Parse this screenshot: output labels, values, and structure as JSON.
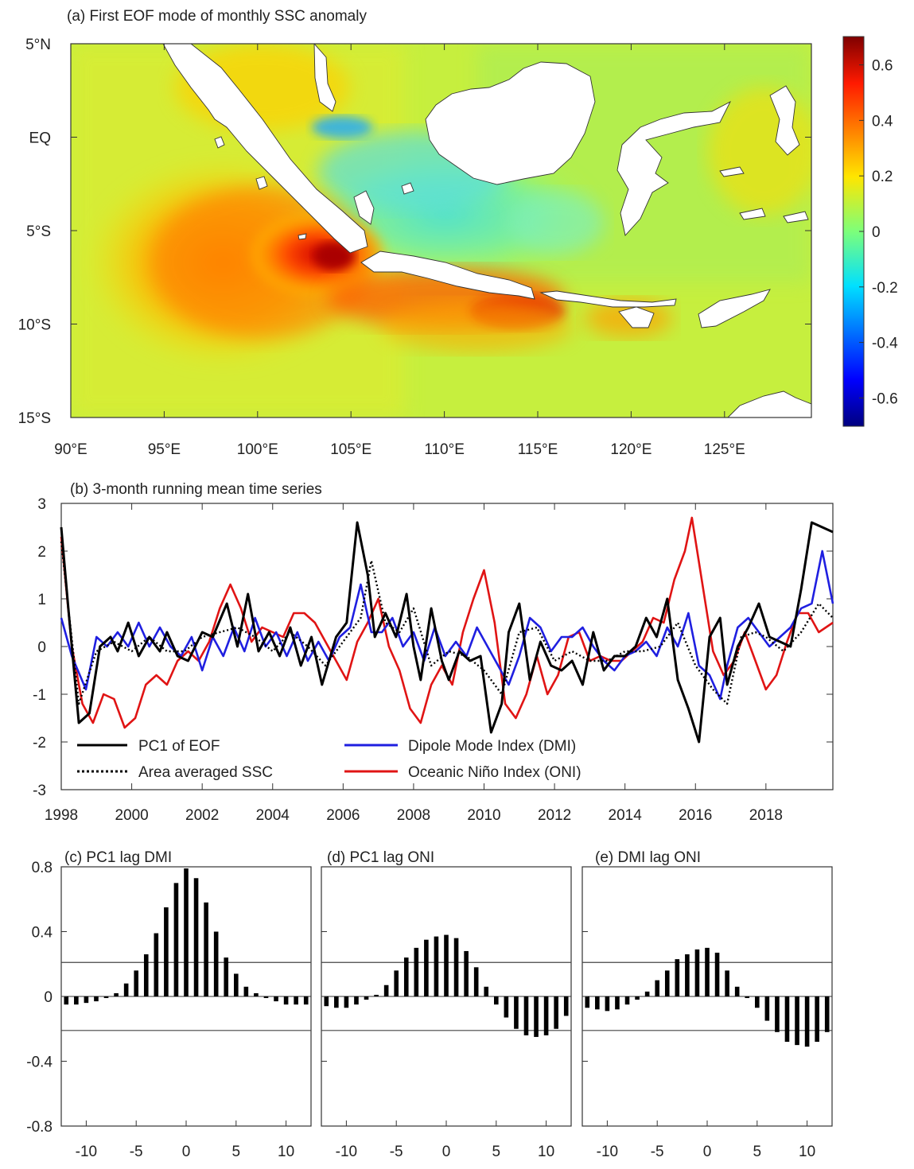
{
  "colors": {
    "pc1": "#000000",
    "dmi": "#1f1fe0",
    "oni": "#e01414",
    "bar": "#000000"
  },
  "panel_a": {
    "title": "(a) First EOF mode of monthly SSC anomaly",
    "lat_labels": [
      "5°N",
      "EQ",
      "5°S",
      "10°S",
      "15°S"
    ],
    "lon_labels": [
      "90°E",
      "95°E",
      "100°E",
      "105°E",
      "110°E",
      "115°E",
      "120°E",
      "125°E"
    ],
    "colorbar_labels": [
      "0.6",
      "0.4",
      "0.2",
      "0",
      "-0.2",
      "-0.4",
      "-0.6"
    ]
  },
  "chart_data": [
    {
      "type": "line",
      "title": "(b) 3-month running mean time series",
      "xlim": [
        1998,
        2019.9
      ],
      "ylim": [
        -3,
        3
      ],
      "ytick_labels": [
        "3",
        "2",
        "1",
        "0",
        "-1",
        "-2",
        "-3"
      ],
      "xtick_labels": [
        "1998",
        "2000",
        "2002",
        "2004",
        "2006",
        "2008",
        "2010",
        "2012",
        "2014",
        "2016",
        "2018"
      ],
      "legend": {
        "pc1": "PC1 of EOF",
        "ssc": "Area averaged SSC",
        "dmi": "Dipole Mode Index (DMI)",
        "oni": "Oceanic Niño Index (ONI)"
      },
      "series": [
        {
          "name": "PC1 of EOF",
          "style": "solid-black",
          "x": [
            1998.0,
            1998.2,
            1998.5,
            1998.8,
            1999.1,
            1999.4,
            1999.6,
            1999.9,
            2000.2,
            2000.5,
            2000.8,
            2001.0,
            2001.3,
            2001.6,
            2002.0,
            2002.3,
            2002.7,
            2003.0,
            2003.3,
            2003.6,
            2003.9,
            2004.2,
            2004.5,
            2004.8,
            2005.1,
            2005.4,
            2005.8,
            2006.1,
            2006.4,
            2006.7,
            2006.9,
            2007.2,
            2007.5,
            2007.8,
            2008.0,
            2008.2,
            2008.5,
            2008.8,
            2009.0,
            2009.3,
            2009.6,
            2009.9,
            2010.2,
            2010.5,
            2010.7,
            2011.0,
            2011.3,
            2011.6,
            2011.9,
            2012.2,
            2012.5,
            2012.8,
            2013.1,
            2013.4,
            2013.7,
            2014.0,
            2014.3,
            2014.6,
            2014.9,
            2015.2,
            2015.5,
            2015.8,
            2016.1,
            2016.4,
            2016.7,
            2016.9,
            2017.2,
            2017.5,
            2017.8,
            2018.1,
            2018.4,
            2018.7,
            2019.0,
            2019.3,
            2019.6,
            2019.9
          ],
          "values": [
            2.5,
            0.8,
            -1.6,
            -1.4,
            0.0,
            0.2,
            -0.1,
            0.5,
            -0.2,
            0.2,
            -0.1,
            0.3,
            -0.2,
            -0.3,
            0.3,
            0.2,
            0.9,
            0.0,
            1.1,
            -0.1,
            0.3,
            -0.2,
            0.4,
            -0.4,
            0.2,
            -0.8,
            0.2,
            0.5,
            2.6,
            1.5,
            0.2,
            0.7,
            0.2,
            1.1,
            0.0,
            -0.7,
            0.8,
            -0.3,
            -0.7,
            -0.1,
            -0.3,
            -0.2,
            -1.8,
            -1.2,
            0.3,
            0.9,
            -0.7,
            0.1,
            -0.4,
            -0.5,
            -0.3,
            -0.8,
            0.3,
            -0.5,
            -0.2,
            -0.2,
            0.0,
            0.6,
            0.2,
            1.0,
            -0.7,
            -1.3,
            -2.0,
            0.2,
            0.6,
            -0.8,
            0.0,
            0.4,
            0.9,
            0.2,
            0.1,
            0.0,
            1.2,
            2.6,
            2.5,
            2.4
          ]
        },
        {
          "name": "Area averaged SSC",
          "style": "dotted-black",
          "x": [
            1998.0,
            1998.5,
            1999.0,
            1999.5,
            2000.0,
            2000.5,
            2001.0,
            2001.5,
            2002.0,
            2002.5,
            2003.0,
            2003.5,
            2004.0,
            2004.5,
            2005.0,
            2005.5,
            2006.0,
            2006.5,
            2006.8,
            2007.2,
            2007.6,
            2008.0,
            2008.5,
            2009.0,
            2009.5,
            2010.0,
            2010.5,
            2011.0,
            2011.5,
            2012.0,
            2012.5,
            2013.0,
            2013.5,
            2014.0,
            2014.5,
            2015.0,
            2015.5,
            2016.0,
            2016.5,
            2016.9,
            2017.3,
            2017.7,
            2018.0,
            2018.5,
            2019.0,
            2019.5,
            2019.9
          ],
          "values": [
            2.2,
            -1.2,
            -0.1,
            0.1,
            -0.1,
            0.2,
            -0.1,
            -0.1,
            0.2,
            0.3,
            0.4,
            0.2,
            -0.1,
            0.3,
            0.0,
            -0.4,
            0.1,
            0.6,
            1.8,
            0.5,
            0.3,
            0.8,
            -0.4,
            -0.1,
            -0.2,
            -0.5,
            -1.0,
            0.3,
            0.4,
            -0.3,
            -0.1,
            -0.3,
            -0.3,
            -0.1,
            -0.1,
            0.0,
            0.5,
            -0.4,
            -0.9,
            -1.2,
            0.2,
            0.3,
            0.2,
            -0.1,
            0.3,
            0.9,
            0.6
          ]
        },
        {
          "name": "Dipole Mode Index (DMI)",
          "style": "blue",
          "x": [
            1998.0,
            1998.3,
            1998.7,
            1999.0,
            1999.3,
            1999.6,
            1999.9,
            2000.2,
            2000.5,
            2000.8,
            2001.1,
            2001.4,
            2001.7,
            2002.0,
            2002.3,
            2002.6,
            2002.9,
            2003.2,
            2003.5,
            2003.8,
            2004.1,
            2004.4,
            2004.7,
            2005.0,
            2005.3,
            2005.6,
            2005.9,
            2006.2,
            2006.5,
            2006.8,
            2007.1,
            2007.4,
            2007.7,
            2008.0,
            2008.3,
            2008.6,
            2008.9,
            2009.2,
            2009.5,
            2009.8,
            2010.1,
            2010.4,
            2010.7,
            2011.0,
            2011.3,
            2011.6,
            2011.9,
            2012.2,
            2012.5,
            2012.8,
            2013.1,
            2013.4,
            2013.7,
            2014.0,
            2014.3,
            2014.6,
            2014.9,
            2015.2,
            2015.5,
            2015.8,
            2016.1,
            2016.4,
            2016.7,
            2016.9,
            2017.2,
            2017.5,
            2017.8,
            2018.1,
            2018.4,
            2018.7,
            2019.0,
            2019.3,
            2019.6,
            2019.9
          ],
          "values": [
            0.6,
            -0.2,
            -0.9,
            0.2,
            0.0,
            0.3,
            0.0,
            0.5,
            0.0,
            0.4,
            0.0,
            -0.2,
            0.2,
            -0.5,
            0.2,
            -0.2,
            0.4,
            -0.1,
            0.6,
            0.0,
            0.3,
            -0.2,
            0.3,
            -0.3,
            0.1,
            -0.3,
            0.2,
            0.4,
            1.3,
            0.3,
            0.3,
            0.6,
            0.0,
            0.3,
            -0.3,
            0.4,
            -0.2,
            0.1,
            -0.2,
            0.4,
            0.0,
            -0.4,
            -0.8,
            -0.2,
            0.6,
            0.4,
            -0.1,
            0.2,
            0.2,
            0.4,
            0.0,
            -0.3,
            -0.5,
            -0.2,
            -0.1,
            0.1,
            -0.2,
            0.4,
            0.0,
            0.7,
            -0.4,
            -0.6,
            -1.1,
            -0.4,
            0.4,
            0.6,
            0.3,
            0.0,
            0.2,
            0.4,
            0.8,
            0.9,
            2.0,
            0.9
          ]
        },
        {
          "name": "Oceanic Niño Index (ONI)",
          "style": "red",
          "x": [
            1998.0,
            1998.3,
            1998.6,
            1998.9,
            1999.2,
            1999.5,
            1999.8,
            2000.1,
            2000.4,
            2000.7,
            2001.0,
            2001.3,
            2001.6,
            2001.9,
            2002.2,
            2002.5,
            2002.8,
            2003.1,
            2003.4,
            2003.7,
            2004.0,
            2004.3,
            2004.6,
            2004.9,
            2005.2,
            2005.5,
            2005.8,
            2006.1,
            2006.4,
            2006.7,
            2007.0,
            2007.3,
            2007.6,
            2007.9,
            2008.2,
            2008.5,
            2008.8,
            2009.1,
            2009.4,
            2009.7,
            2010.0,
            2010.3,
            2010.6,
            2010.9,
            2011.2,
            2011.5,
            2011.8,
            2012.1,
            2012.4,
            2012.7,
            2013.0,
            2013.3,
            2013.6,
            2013.9,
            2014.2,
            2014.5,
            2014.8,
            2015.1,
            2015.4,
            2015.7,
            2015.9,
            2016.2,
            2016.5,
            2016.8,
            2017.1,
            2017.4,
            2017.7,
            2018.0,
            2018.3,
            2018.6,
            2018.9,
            2019.2,
            2019.5,
            2019.9
          ],
          "values": [
            2.3,
            0.0,
            -1.2,
            -1.6,
            -1.0,
            -1.1,
            -1.7,
            -1.5,
            -0.8,
            -0.6,
            -0.8,
            -0.3,
            -0.1,
            -0.3,
            0.1,
            0.8,
            1.3,
            0.8,
            0.1,
            0.4,
            0.3,
            0.2,
            0.7,
            0.7,
            0.5,
            0.1,
            -0.3,
            -0.7,
            0.1,
            0.5,
            1.0,
            0.0,
            -0.5,
            -1.3,
            -1.6,
            -0.8,
            -0.4,
            -0.8,
            0.3,
            1.0,
            1.6,
            0.5,
            -1.2,
            -1.5,
            -1.0,
            -0.2,
            -1.0,
            -0.6,
            0.2,
            0.3,
            -0.3,
            -0.2,
            -0.3,
            -0.3,
            -0.1,
            0.1,
            0.6,
            0.5,
            1.4,
            2.0,
            2.7,
            1.3,
            -0.1,
            -0.6,
            -0.3,
            0.3,
            -0.3,
            -0.9,
            -0.6,
            0.1,
            0.7,
            0.7,
            0.3,
            0.5
          ]
        }
      ]
    },
    {
      "type": "bar",
      "title": "(c) PC1 lag DMI",
      "ylim": [
        -0.8,
        0.8
      ],
      "ytick_labels": [
        "0.8",
        "0.4",
        "0",
        "-0.4",
        "-0.8"
      ],
      "xtick_labels": [
        "-10",
        "-5",
        "0",
        "5",
        "10"
      ],
      "significance": 0.21,
      "x": [
        -12,
        -11,
        -10,
        -9,
        -8,
        -7,
        -6,
        -5,
        -4,
        -3,
        -2,
        -1,
        0,
        1,
        2,
        3,
        4,
        5,
        6,
        7,
        8,
        9,
        10,
        11,
        12
      ],
      "values": [
        -0.05,
        -0.05,
        -0.04,
        -0.03,
        -0.01,
        0.02,
        0.08,
        0.16,
        0.26,
        0.39,
        0.55,
        0.7,
        0.79,
        0.73,
        0.58,
        0.4,
        0.24,
        0.14,
        0.06,
        0.02,
        -0.01,
        -0.03,
        -0.05,
        -0.05,
        -0.05
      ]
    },
    {
      "type": "bar",
      "title": "(d) PC1 lag ONI",
      "ylim": [
        -0.8,
        0.8
      ],
      "xtick_labels": [
        "-10",
        "-5",
        "0",
        "5",
        "10"
      ],
      "significance": 0.21,
      "x": [
        -12,
        -11,
        -10,
        -9,
        -8,
        -7,
        -6,
        -5,
        -4,
        -3,
        -2,
        -1,
        0,
        1,
        2,
        3,
        4,
        5,
        6,
        7,
        8,
        9,
        10,
        11,
        12
      ],
      "values": [
        -0.06,
        -0.07,
        -0.07,
        -0.05,
        -0.02,
        0.01,
        0.07,
        0.16,
        0.24,
        0.3,
        0.35,
        0.37,
        0.38,
        0.36,
        0.28,
        0.18,
        0.06,
        -0.05,
        -0.13,
        -0.2,
        -0.24,
        -0.25,
        -0.24,
        -0.2,
        -0.12
      ]
    },
    {
      "type": "bar",
      "title": "(e) DMI lag ONI",
      "ylim": [
        -0.8,
        0.8
      ],
      "xtick_labels": [
        "-10",
        "-5",
        "0",
        "5",
        "10"
      ],
      "significance": 0.21,
      "x": [
        -12,
        -11,
        -10,
        -9,
        -8,
        -7,
        -6,
        -5,
        -4,
        -3,
        -2,
        -1,
        0,
        1,
        2,
        3,
        4,
        5,
        6,
        7,
        8,
        9,
        10,
        11,
        12
      ],
      "values": [
        -0.07,
        -0.08,
        -0.09,
        -0.08,
        -0.05,
        -0.02,
        0.03,
        0.1,
        0.16,
        0.23,
        0.26,
        0.29,
        0.3,
        0.27,
        0.16,
        0.06,
        -0.01,
        -0.07,
        -0.15,
        -0.22,
        -0.28,
        -0.3,
        -0.31,
        -0.28,
        -0.22
      ]
    }
  ]
}
